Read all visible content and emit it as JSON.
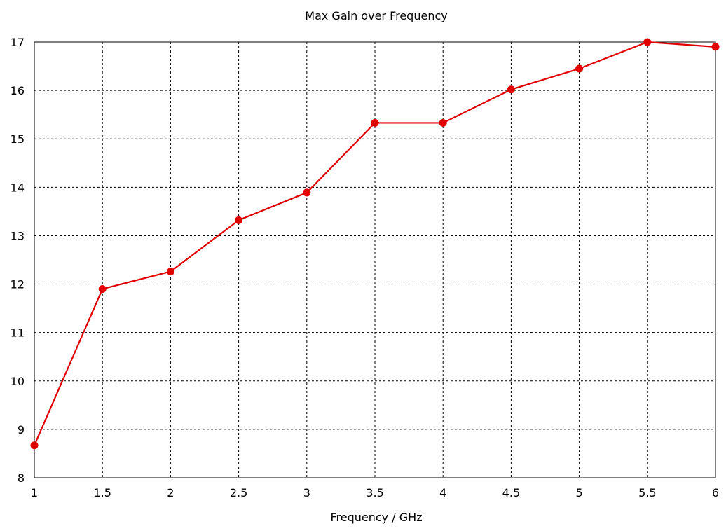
{
  "chart_data": {
    "type": "line",
    "title": "Max Gain over Frequency",
    "xlabel": "Frequency / GHz",
    "ylabel": "",
    "xlim": [
      1,
      6
    ],
    "ylim": [
      8,
      17
    ],
    "x_ticks": [
      "1",
      "1.5",
      "2",
      "2.5",
      "3",
      "3.5",
      "4",
      "4.5",
      "5",
      "5.5",
      "6"
    ],
    "y_ticks": [
      "8",
      "9",
      "10",
      "11",
      "12",
      "13",
      "14",
      "15",
      "16",
      "17"
    ],
    "grid": true,
    "legend": "none",
    "series": [
      {
        "color": "#e00000",
        "marker": "circle",
        "x": [
          1,
          1.5,
          2,
          2.5,
          3,
          3.5,
          4,
          4.5,
          5,
          5.5,
          6
        ],
        "y": [
          8.67,
          11.9,
          12.26,
          13.32,
          13.89,
          15.33,
          15.33,
          16.02,
          16.45,
          17.0,
          16.9
        ]
      }
    ]
  }
}
